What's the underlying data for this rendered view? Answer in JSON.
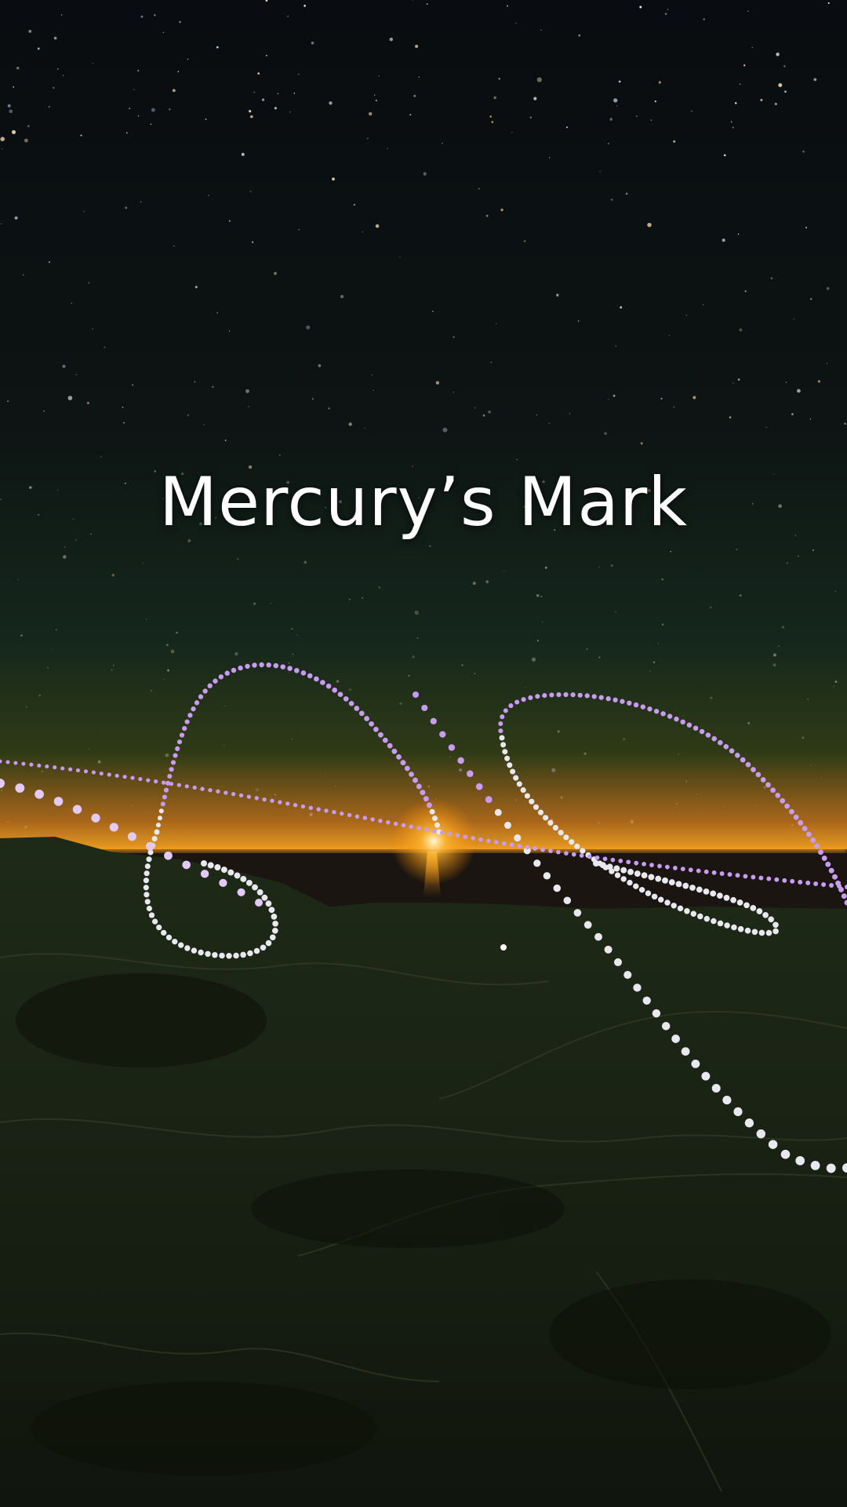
{
  "title": "Mercury’s Mark",
  "colors": {
    "sky_top": "#0a0d10",
    "sky_mid": "#142019",
    "horizon_glow": "#f5a623",
    "sun": "#fff6c8",
    "terrain": "#1c2416",
    "path_purple": "#c79cf2",
    "path_white": "#e8e8ee"
  },
  "scene": {
    "sun": "sun-icon",
    "paths": [
      "mercury-analemma-path",
      "planet-trail-path",
      "venus-analemma-path",
      "ecliptic-path"
    ]
  }
}
